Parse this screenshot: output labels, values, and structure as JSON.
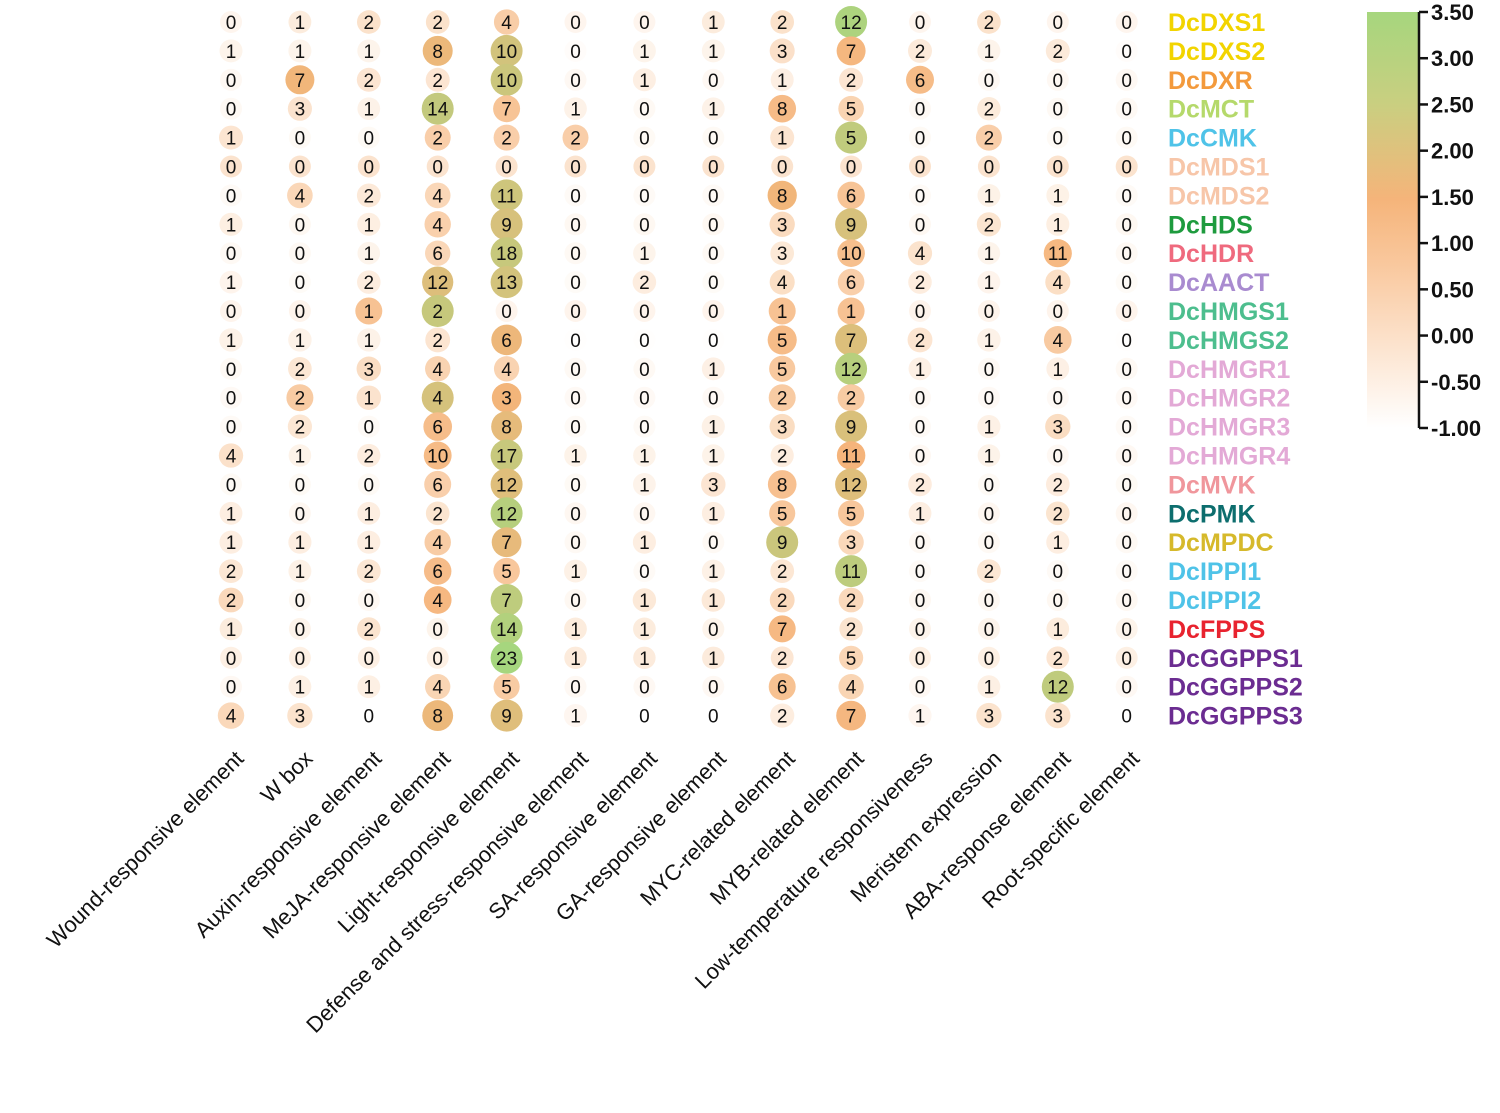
{
  "chart_data": {
    "type": "heatmap",
    "title": "",
    "columns": [
      "Wound-responsive element",
      "W box",
      "Auxin-responsive element",
      "MeJA-responsive element",
      "Light-responsive element",
      "Defense and stress-responsive element",
      "SA-responsive element",
      "GA-responsive element",
      "MYC-related element",
      "MYB-related element",
      "Low-temperature responsiveness",
      "Meristem expression",
      "ABA-response element",
      "Root-specific element"
    ],
    "rows": [
      {
        "name": "DcDXS1",
        "color": "#F2D400",
        "values": [
          0,
          1,
          2,
          2,
          4,
          0,
          0,
          1,
          2,
          12,
          0,
          2,
          0,
          0
        ]
      },
      {
        "name": "DcDXS2",
        "color": "#F2D400",
        "values": [
          1,
          1,
          1,
          8,
          10,
          0,
          1,
          1,
          3,
          7,
          2,
          1,
          2,
          0
        ]
      },
      {
        "name": "DcDXR",
        "color": "#F39A3C",
        "values": [
          0,
          7,
          2,
          2,
          10,
          0,
          1,
          0,
          1,
          2,
          6,
          0,
          0,
          0
        ]
      },
      {
        "name": "DcMCT",
        "color": "#B5D96B",
        "values": [
          0,
          3,
          1,
          14,
          7,
          1,
          0,
          1,
          8,
          5,
          0,
          2,
          0,
          0
        ]
      },
      {
        "name": "DcCMK",
        "color": "#4FC3E8",
        "values": [
          1,
          0,
          0,
          2,
          2,
          2,
          0,
          0,
          1,
          5,
          0,
          2,
          0,
          0
        ]
      },
      {
        "name": "DcMDS1",
        "color": "#F7C6A9",
        "values": [
          0,
          0,
          0,
          0,
          0,
          0,
          0,
          0,
          0,
          0,
          0,
          0,
          0,
          0
        ]
      },
      {
        "name": "DcMDS2",
        "color": "#F7C6A9",
        "values": [
          0,
          4,
          2,
          4,
          11,
          0,
          0,
          0,
          8,
          6,
          0,
          1,
          1,
          0
        ]
      },
      {
        "name": "DcHDS",
        "color": "#1E9B3E",
        "values": [
          1,
          0,
          1,
          4,
          9,
          0,
          0,
          0,
          3,
          9,
          0,
          2,
          1,
          0
        ]
      },
      {
        "name": "DcHDR",
        "color": "#EF6A7E",
        "values": [
          0,
          0,
          1,
          6,
          18,
          0,
          1,
          0,
          3,
          10,
          4,
          1,
          11,
          0
        ]
      },
      {
        "name": "DcAACT",
        "color": "#A98BD0",
        "values": [
          1,
          0,
          2,
          12,
          13,
          0,
          2,
          0,
          4,
          6,
          2,
          1,
          4,
          0
        ]
      },
      {
        "name": "DcHMGS1",
        "color": "#4DBE8E",
        "values": [
          0,
          0,
          1,
          2,
          0,
          0,
          0,
          0,
          1,
          1,
          0,
          0,
          0,
          0
        ]
      },
      {
        "name": "DcHMGS2",
        "color": "#4DBE8E",
        "values": [
          1,
          1,
          1,
          2,
          6,
          0,
          0,
          0,
          5,
          7,
          2,
          1,
          4,
          0
        ]
      },
      {
        "name": "DcHMGR1",
        "color": "#E3A9D6",
        "values": [
          0,
          2,
          3,
          4,
          4,
          0,
          0,
          1,
          5,
          12,
          1,
          0,
          1,
          0
        ]
      },
      {
        "name": "DcHMGR2",
        "color": "#E3A9D6",
        "values": [
          0,
          2,
          1,
          4,
          3,
          0,
          0,
          0,
          2,
          2,
          0,
          0,
          0,
          0
        ]
      },
      {
        "name": "DcHMGR3",
        "color": "#E3A9D6",
        "values": [
          0,
          2,
          0,
          6,
          8,
          0,
          0,
          1,
          3,
          9,
          0,
          1,
          3,
          0
        ]
      },
      {
        "name": "DcHMGR4",
        "color": "#E3A9D6",
        "values": [
          4,
          1,
          2,
          10,
          17,
          1,
          1,
          1,
          2,
          11,
          0,
          1,
          0,
          0
        ]
      },
      {
        "name": "DcMVK",
        "color": "#F0969C",
        "values": [
          0,
          0,
          0,
          6,
          12,
          0,
          1,
          3,
          8,
          12,
          2,
          0,
          2,
          0
        ]
      },
      {
        "name": "DcPMK",
        "color": "#0D6E6E",
        "values": [
          1,
          0,
          1,
          2,
          12,
          0,
          0,
          1,
          5,
          5,
          1,
          0,
          2,
          0
        ]
      },
      {
        "name": "DcMPDC",
        "color": "#D6B92B",
        "values": [
          1,
          1,
          1,
          4,
          7,
          0,
          1,
          0,
          9,
          3,
          0,
          0,
          1,
          0
        ]
      },
      {
        "name": "DcIPPI1",
        "color": "#4FC3E8",
        "values": [
          2,
          1,
          2,
          6,
          5,
          1,
          0,
          1,
          2,
          11,
          0,
          2,
          0,
          0
        ]
      },
      {
        "name": "DcIPPI2",
        "color": "#4FC3E8",
        "values": [
          2,
          0,
          0,
          4,
          7,
          0,
          1,
          1,
          2,
          2,
          0,
          0,
          0,
          0
        ]
      },
      {
        "name": "DcFPPS",
        "color": "#E8232F",
        "values": [
          1,
          0,
          2,
          0,
          14,
          1,
          1,
          0,
          7,
          2,
          0,
          0,
          1,
          0
        ]
      },
      {
        "name": "DcGGPPS1",
        "color": "#6B2C91",
        "values": [
          0,
          0,
          0,
          0,
          23,
          1,
          1,
          1,
          2,
          5,
          0,
          0,
          2,
          0
        ]
      },
      {
        "name": "DcGGPPS2",
        "color": "#6B2C91",
        "values": [
          0,
          1,
          1,
          4,
          5,
          0,
          0,
          0,
          6,
          4,
          0,
          1,
          12,
          0
        ]
      },
      {
        "name": "DcGGPPS3",
        "color": "#6B2C91",
        "values": [
          4,
          3,
          0,
          8,
          9,
          1,
          0,
          0,
          2,
          7,
          1,
          3,
          3,
          0
        ]
      }
    ],
    "scale": {
      "ticks": [
        "3.50",
        "3.00",
        "2.50",
        "2.00",
        "1.50",
        "1.00",
        "0.50",
        "0.00",
        "-0.50",
        "-1.00"
      ],
      "min": -1.0,
      "max": 3.5,
      "colors": {
        "low": "#FFFFFF",
        "mid": "#F9B97F",
        "high": "#A9D77F"
      }
    }
  }
}
